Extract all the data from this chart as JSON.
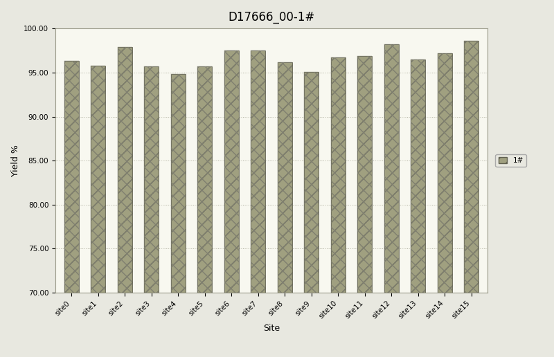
{
  "title": "D17666_00-1#",
  "xlabel": "Site",
  "ylabel": "Yield %",
  "categories": [
    "site0",
    "site1",
    "site2",
    "site3",
    "site4",
    "site5",
    "site6",
    "site7",
    "site8",
    "site9",
    "site10",
    "site11",
    "site12",
    "site13",
    "site14",
    "site15"
  ],
  "values": [
    96.3,
    95.8,
    97.9,
    95.7,
    94.8,
    95.7,
    97.5,
    97.5,
    96.2,
    95.1,
    96.7,
    96.9,
    98.2,
    96.5,
    97.2,
    98.6
  ],
  "ylim": [
    70.0,
    100.0
  ],
  "yticks": [
    70.0,
    75.0,
    80.0,
    85.0,
    90.0,
    95.0,
    100.0
  ],
  "bar_color": "#a0a080",
  "bar_edge_color": "#606050",
  "legend_label": "1#",
  "background_color": "#e8e8e0",
  "plot_bg_color": "#f8f8f0",
  "grid_color": "#b0b0a0",
  "title_fontsize": 12,
  "axis_fontsize": 9,
  "tick_fontsize": 7.5
}
